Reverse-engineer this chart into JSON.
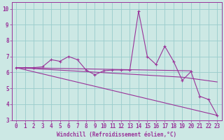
{
  "xlabel": "Windchill (Refroidissement éolien,°C)",
  "bg_color": "#cce8e4",
  "line_color": "#993399",
  "grid_color": "#99cccc",
  "xlim": [
    -0.5,
    23.5
  ],
  "ylim": [
    3,
    10.4
  ],
  "yticks": [
    3,
    4,
    5,
    6,
    7,
    8,
    9,
    10
  ],
  "xticks": [
    0,
    1,
    2,
    3,
    4,
    5,
    6,
    7,
    8,
    9,
    10,
    11,
    12,
    13,
    14,
    15,
    16,
    17,
    18,
    19,
    20,
    21,
    22,
    23
  ],
  "series1_x": [
    0,
    1,
    2,
    3,
    4,
    5,
    6,
    7,
    8,
    9,
    10,
    11,
    12,
    13,
    14,
    15,
    16,
    17,
    18,
    19,
    20,
    21,
    22,
    23
  ],
  "series1_y": [
    6.3,
    6.3,
    6.3,
    6.35,
    6.8,
    6.7,
    7.0,
    6.8,
    6.15,
    5.85,
    6.1,
    6.15,
    6.15,
    6.15,
    9.85,
    7.0,
    6.5,
    7.65,
    6.7,
    5.5,
    6.05,
    4.5,
    4.3,
    3.3
  ],
  "series2_x": [
    0,
    20
  ],
  "series2_y": [
    6.3,
    6.1
  ],
  "series3_x": [
    0,
    19,
    23
  ],
  "series3_y": [
    6.3,
    5.7,
    5.4
  ],
  "series4_x": [
    0,
    23
  ],
  "series4_y": [
    6.3,
    3.3
  ],
  "font_color": "#993399",
  "tick_fontsize": 5.5,
  "xlabel_fontsize": 5.5
}
